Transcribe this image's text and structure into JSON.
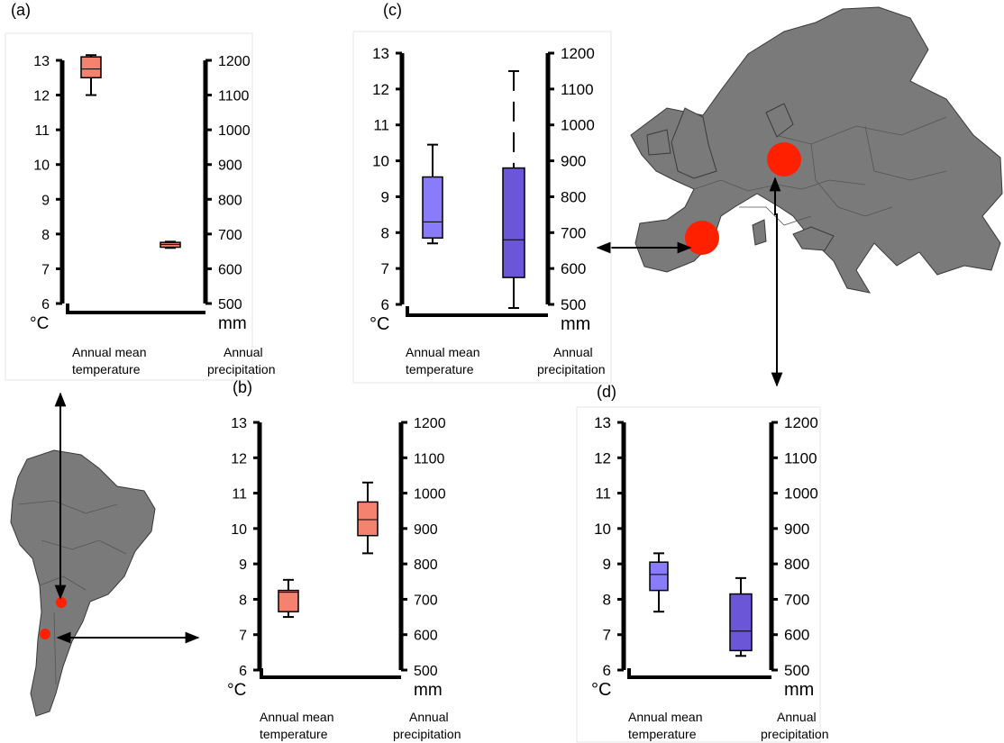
{
  "figure": {
    "colors": {
      "warm": "#f4826f",
      "cool_temp": "#8a7cf8",
      "cool_precip": "#6a56d6",
      "map": "#7a7a7a",
      "site": "#ff2000"
    }
  },
  "maps": [
    {
      "name": "south-america-map"
    },
    {
      "name": "europe-map"
    }
  ],
  "chart_data": [
    {
      "panel": "(a)",
      "type": "boxplot",
      "left_axis": {
        "ticks": [
          13,
          12,
          11,
          10,
          9,
          8,
          7,
          6
        ],
        "unit": "°C",
        "range": [
          6,
          13
        ]
      },
      "right_axis": {
        "ticks": [
          1200,
          1100,
          1000,
          900,
          800,
          700,
          600,
          500
        ],
        "unit": "mm",
        "range": [
          500,
          1200
        ]
      },
      "categories": [
        "Annual mean\ntemperature",
        "Annual\nprecipitation"
      ],
      "boxes": [
        {
          "axis": "left",
          "whisker_low": 12.0,
          "q1": 12.5,
          "median": 12.75,
          "q3": 13.1,
          "whisker_high": 13.15,
          "color": "#f4826f"
        },
        {
          "axis": "right",
          "whisker_low": 660,
          "q1": 662,
          "median": 670,
          "q3": 676,
          "whisker_high": 678,
          "color": "#f4826f"
        }
      ]
    },
    {
      "panel": "(b)",
      "type": "boxplot",
      "left_axis": {
        "ticks": [
          13,
          12,
          11,
          10,
          9,
          8,
          7,
          6
        ],
        "unit": "°C",
        "range": [
          6,
          13
        ]
      },
      "right_axis": {
        "ticks": [
          1200,
          1100,
          1000,
          900,
          800,
          700,
          600,
          500
        ],
        "unit": "mm",
        "range": [
          500,
          1200
        ]
      },
      "categories": [
        "Annual mean\ntemperature",
        "Annual\nprecipitation"
      ],
      "boxes": [
        {
          "axis": "left",
          "whisker_low": 7.5,
          "q1": 7.65,
          "median": 8.2,
          "q3": 8.25,
          "whisker_high": 8.55,
          "color": "#f4826f"
        },
        {
          "axis": "right",
          "whisker_low": 830,
          "q1": 880,
          "median": 925,
          "q3": 975,
          "whisker_high": 1030,
          "color": "#f4826f"
        }
      ]
    },
    {
      "panel": "(c)",
      "type": "boxplot",
      "left_axis": {
        "ticks": [
          13,
          12,
          11,
          10,
          9,
          8,
          7,
          6
        ],
        "unit": "°C",
        "range": [
          6,
          13
        ]
      },
      "right_axis": {
        "ticks": [
          1200,
          1100,
          1000,
          900,
          800,
          700,
          600,
          500
        ],
        "unit": "mm",
        "range": [
          500,
          1200
        ]
      },
      "categories": [
        "Annual mean\ntemperature",
        "Annual\nprecipitation"
      ],
      "boxes": [
        {
          "axis": "left",
          "whisker_low": 7.7,
          "q1": 7.85,
          "median": 8.3,
          "q3": 9.55,
          "whisker_high": 10.45,
          "color": "#8a7cf8"
        },
        {
          "axis": "right",
          "whisker_low": 490,
          "q1": 575,
          "median": 680,
          "q3": 880,
          "whisker_high": 1150,
          "color": "#6a56d6",
          "dashed_upper": true
        }
      ]
    },
    {
      "panel": "(d)",
      "type": "boxplot",
      "left_axis": {
        "ticks": [
          13,
          12,
          11,
          10,
          9,
          8,
          7,
          6
        ],
        "unit": "°C",
        "range": [
          6,
          13
        ]
      },
      "right_axis": {
        "ticks": [
          1200,
          1100,
          1000,
          900,
          800,
          700,
          600,
          500
        ],
        "unit": "mm",
        "range": [
          500,
          1200
        ]
      },
      "categories": [
        "Annual mean\ntemperature",
        "Annual\nprecipitation"
      ],
      "boxes": [
        {
          "axis": "left",
          "whisker_low": 7.65,
          "q1": 8.25,
          "median": 8.7,
          "q3": 9.05,
          "whisker_high": 9.3,
          "color": "#8a7cf8"
        },
        {
          "axis": "right",
          "whisker_low": 540,
          "q1": 555,
          "median": 610,
          "q3": 715,
          "whisker_high": 760,
          "color": "#6a56d6"
        }
      ]
    }
  ]
}
